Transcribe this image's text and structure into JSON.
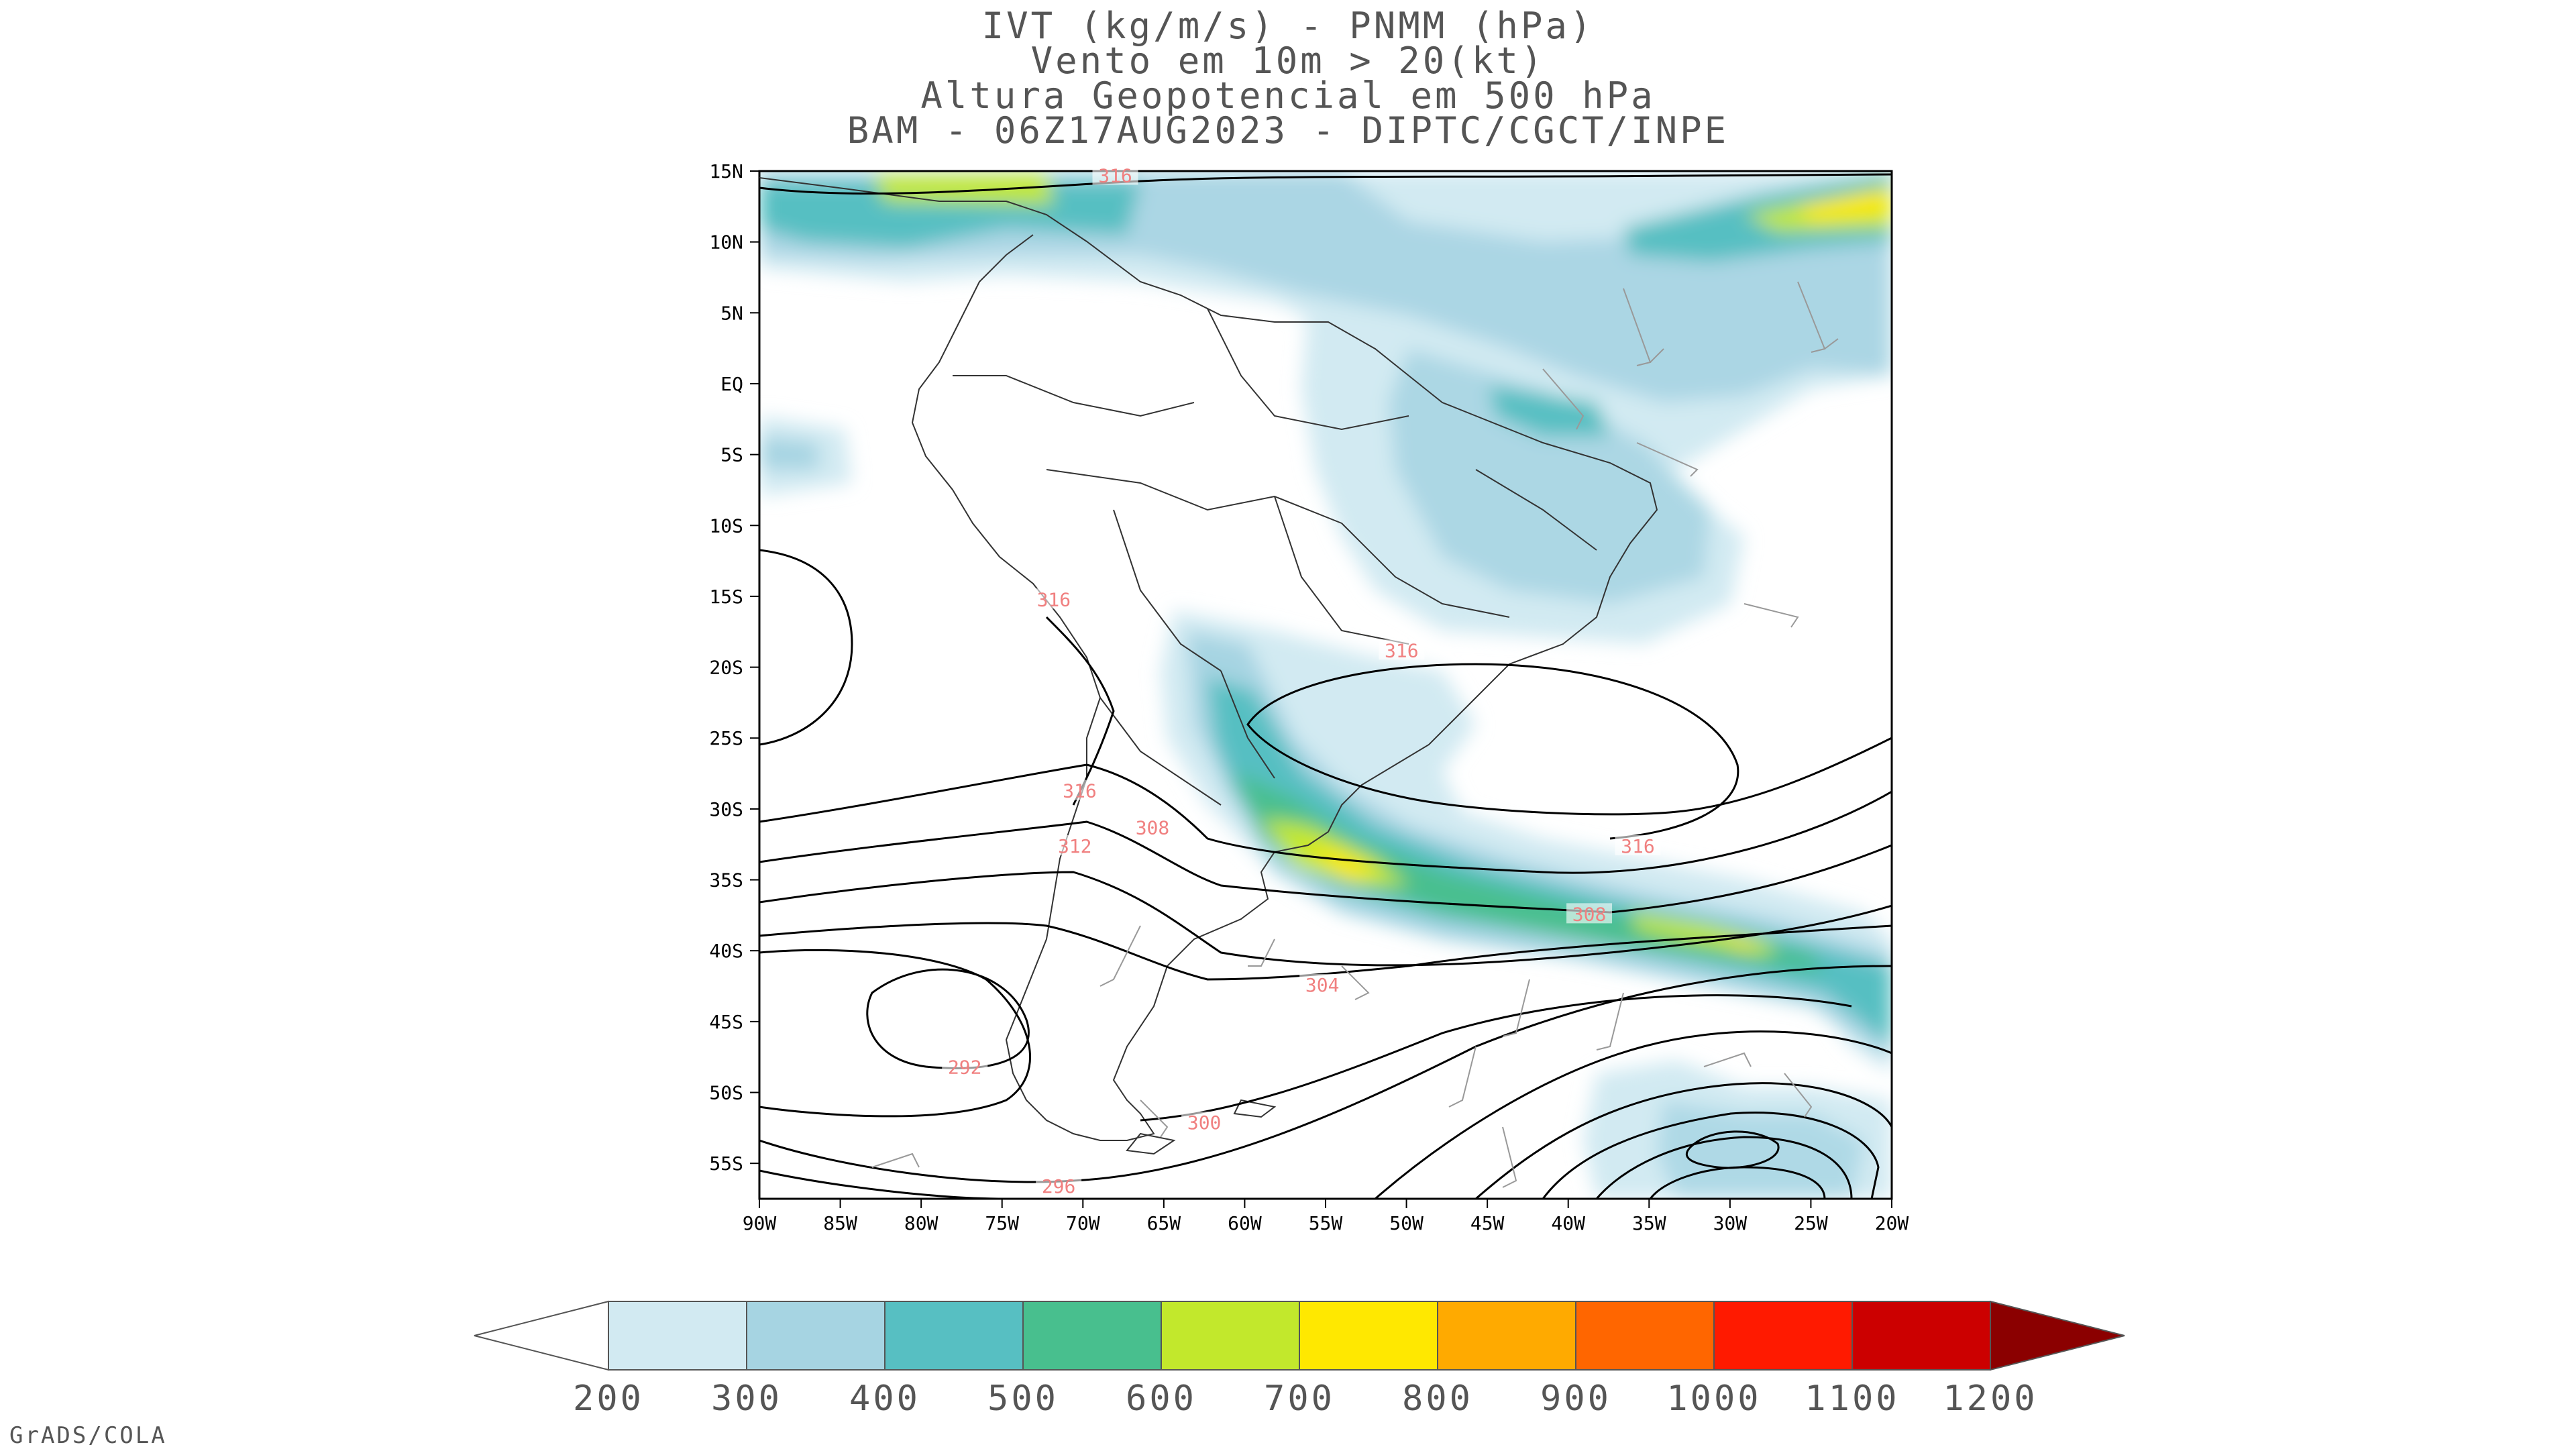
{
  "title_lines": [
    "IVT (kg/m/s) - PNMM (hPa)",
    "Vento em 10m > 20(kt)",
    "Altura Geopotencial em 500 hPa",
    "BAM - 06Z17AUG2023 - DIPTC/CGCT/INPE"
  ],
  "map": {
    "lat_labels": [
      "15N",
      "10N",
      "5N",
      "EQ",
      "5S",
      "10S",
      "15S",
      "20S",
      "25S",
      "30S",
      "35S",
      "40S",
      "45S",
      "50S",
      "55S"
    ],
    "lon_labels": [
      "90W",
      "85W",
      "80W",
      "75W",
      "70W",
      "65W",
      "60W",
      "55W",
      "50W",
      "45W",
      "40W",
      "35W",
      "30W",
      "25W",
      "20W"
    ],
    "contour_labels": [
      {
        "text": "316",
        "lon": -68,
        "lat": 14.6
      },
      {
        "text": "316",
        "lon": -71.8,
        "lat": -15.3
      },
      {
        "text": "316",
        "lon": -50.3,
        "lat": -18.9
      },
      {
        "text": "316",
        "lon": -70.2,
        "lat": -28.8
      },
      {
        "text": "308",
        "lon": -65.7,
        "lat": -31.4
      },
      {
        "text": "312",
        "lon": -70.5,
        "lat": -32.7
      },
      {
        "text": "316",
        "lon": -35.7,
        "lat": -32.7
      },
      {
        "text": "308",
        "lon": -38.7,
        "lat": -37.5
      },
      {
        "text": "304",
        "lon": -55.2,
        "lat": -42.5
      },
      {
        "text": "292",
        "lon": -77.3,
        "lat": -48.3
      },
      {
        "text": "300",
        "lon": -62.5,
        "lat": -52.2
      },
      {
        "text": "296",
        "lon": -71.5,
        "lat": -56.7
      }
    ]
  },
  "colorbar": {
    "labels": [
      "200",
      "300",
      "400",
      "500",
      "600",
      "700",
      "800",
      "900",
      "1000",
      "1100",
      "1200"
    ],
    "colors": [
      "#d2eaf2",
      "#a6d4e2",
      "#57bfc2",
      "#48bf8e",
      "#c2e82c",
      "#ffe800",
      "#ffaa00",
      "#ff6600",
      "#ff1a00",
      "#cc0000",
      "#8b0000"
    ]
  },
  "footer": "GrADS/COLA"
}
